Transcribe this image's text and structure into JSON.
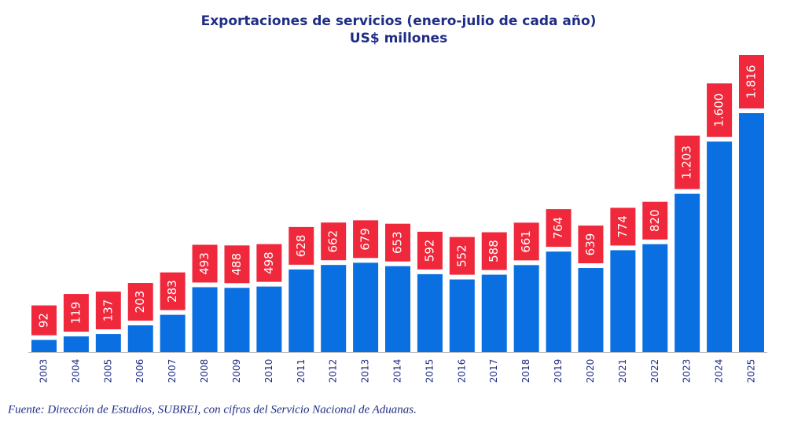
{
  "chart_data": {
    "type": "bar",
    "title": "Exportaciones de servicios (enero-julio de cada año)",
    "subtitle": "US$ millones",
    "source": "Fuente: Dirección de Estudios, SUBREI, con cifras del Servicio Nacional de Aduanas.",
    "categories": [
      "2003",
      "2004",
      "2005",
      "2006",
      "2007",
      "2008",
      "2009",
      "2010",
      "2011",
      "2012",
      "2013",
      "2014",
      "2015",
      "2016",
      "2017",
      "2018",
      "2019",
      "2020",
      "2021",
      "2022",
      "2023",
      "2024",
      "2025"
    ],
    "values": [
      92,
      119,
      137,
      203,
      283,
      493,
      488,
      498,
      628,
      662,
      679,
      653,
      592,
      552,
      588,
      661,
      764,
      639,
      774,
      820,
      1203,
      1600,
      1816
    ],
    "value_labels": [
      "92",
      "119",
      "137",
      "203",
      "283",
      "493",
      "488",
      "498",
      "628",
      "662",
      "679",
      "653",
      "592",
      "552",
      "588",
      "661",
      "764",
      "639",
      "774",
      "820",
      "1.203",
      "1.600",
      "1.816"
    ],
    "color": "#0a6fe0",
    "label_color": "#f0283c"
  }
}
